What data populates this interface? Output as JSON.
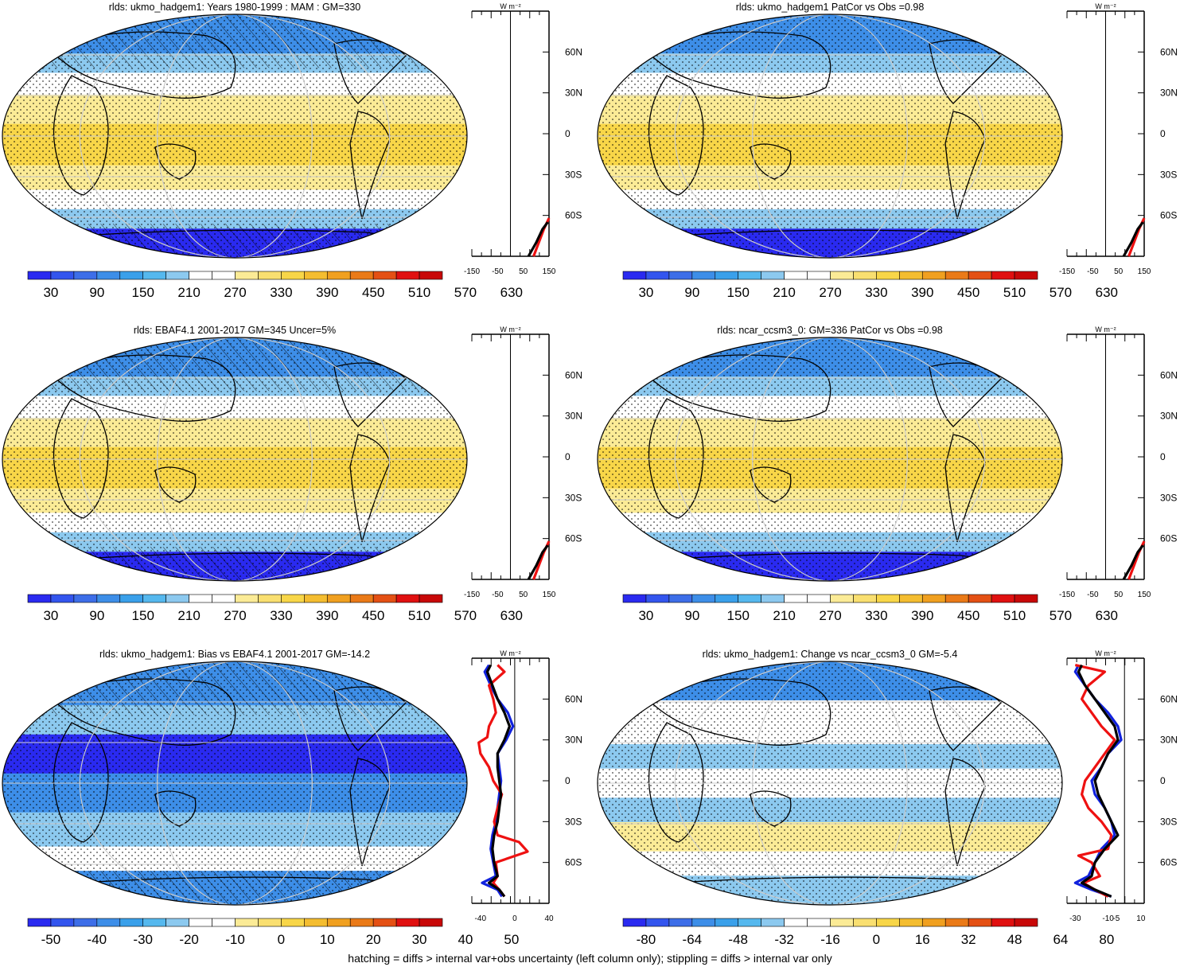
{
  "footnote": "hatching = diffs > internal var+obs uncertainty (left column only); stippling = diffs > internal var only",
  "colors": {
    "blue_dark": "#2a2af0",
    "blue_mid": "#3d8ee8",
    "blue_light": "#8cc9ef",
    "white": "#ffffff",
    "yellow_light": "#fbeb96",
    "yellow": "#f8d648",
    "orange": "#f0a020",
    "red": "#e01010",
    "line_red": "#ee1111",
    "line_blue": "#1122dd",
    "line_black": "#000000"
  },
  "lat_labels": [
    "60N",
    "30N",
    "0",
    "30S",
    "60S"
  ],
  "units_label": "W m⁻²",
  "panels": [
    {
      "title": "rlds: ukmo_hadgem1: Years 1980-1999 : MAM : GM=330",
      "colorbar_labels": [
        "30",
        "90",
        "150",
        "210",
        "270",
        "330",
        "390",
        "450",
        "510",
        "570",
        "630"
      ],
      "zonal_ticks": [
        "-150",
        "-50",
        "50",
        "150"
      ],
      "hatched": true
    },
    {
      "title": "rlds: ukmo_hadgem1 PatCor vs Obs =0.98",
      "colorbar_labels": [
        "30",
        "90",
        "150",
        "210",
        "270",
        "330",
        "390",
        "450",
        "510",
        "570",
        "630"
      ],
      "zonal_ticks": [
        "-150",
        "-50",
        "50",
        "150"
      ],
      "hatched": false
    },
    {
      "title": "rlds: EBAF4.1 2001-2017 GM=345 Uncer=5%",
      "colorbar_labels": [
        "30",
        "90",
        "150",
        "210",
        "270",
        "330",
        "390",
        "450",
        "510",
        "570",
        "630"
      ],
      "zonal_ticks": [
        "-150",
        "-50",
        "50",
        "150"
      ],
      "hatched": true
    },
    {
      "title": "rlds: ncar_ccsm3_0: GM=336 PatCor vs Obs =0.98",
      "colorbar_labels": [
        "30",
        "90",
        "150",
        "210",
        "270",
        "330",
        "390",
        "450",
        "510",
        "570",
        "630"
      ],
      "zonal_ticks": [
        "-150",
        "-50",
        "50",
        "150"
      ],
      "hatched": false
    },
    {
      "title": "rlds: ukmo_hadgem1: Bias vs EBAF4.1 2001-2017 GM=-14.2",
      "colorbar_labels": [
        "-50",
        "-40",
        "-30",
        "-20",
        "-10",
        "0",
        "10",
        "20",
        "30",
        "40",
        "50"
      ],
      "zonal_ticks": [
        "-40",
        "0",
        "40"
      ],
      "hatched": true
    },
    {
      "title": "rlds: ukmo_hadgem1: Change vs ncar_ccsm3_0 GM=-5.4",
      "colorbar_labels": [
        "-80",
        "-64",
        "-48",
        "-32",
        "-16",
        "0",
        "16",
        "32",
        "48",
        "64",
        "80"
      ],
      "zonal_ticks": [
        "-30",
        "-10",
        "-5",
        "10"
      ],
      "hatched": false
    }
  ],
  "chart_data": [
    {
      "type": "heatmap",
      "title": "rlds: ukmo_hadgem1: Years 1980-1999 : MAM : GM=330",
      "colorbar": [
        30,
        90,
        150,
        210,
        270,
        330,
        390,
        450,
        510,
        570,
        630
      ],
      "lat_ticks": [
        "60N",
        "30N",
        "0",
        "30S",
        "60S"
      ],
      "zonal_mean": {
        "xlim": [
          -150,
          150
        ],
        "series": [
          {
            "color": "red",
            "lat": [
              -90,
              -80,
              -70,
              -62
            ],
            "x": [
              90,
              110,
              130,
              150
            ]
          },
          {
            "color": "black",
            "lat": [
              -90,
              -80,
              -70,
              -65
            ],
            "x": [
              70,
              100,
              125,
              145
            ]
          }
        ]
      }
    },
    {
      "type": "heatmap",
      "title": "rlds: ukmo_hadgem1 PatCor vs Obs =0.98",
      "colorbar": [
        30,
        90,
        150,
        210,
        270,
        330,
        390,
        450,
        510,
        570,
        630
      ],
      "lat_ticks": [
        "60N",
        "30N",
        "0",
        "30S",
        "60S"
      ],
      "zonal_mean": {
        "xlim": [
          -150,
          150
        ],
        "series": [
          {
            "color": "red",
            "lat": [
              -90,
              -80,
              -70,
              -62
            ],
            "x": [
              90,
              110,
              130,
              150
            ]
          },
          {
            "color": "black",
            "lat": [
              -90,
              -80,
              -70,
              -65
            ],
            "x": [
              70,
              100,
              125,
              145
            ]
          }
        ]
      }
    },
    {
      "type": "heatmap",
      "title": "rlds: EBAF4.1 2001-2017 GM=345 Uncer=5%",
      "colorbar": [
        30,
        90,
        150,
        210,
        270,
        330,
        390,
        450,
        510,
        570,
        630
      ],
      "lat_ticks": [
        "60N",
        "30N",
        "0",
        "30S",
        "60S"
      ],
      "zonal_mean": {
        "xlim": [
          -150,
          150
        ],
        "series": [
          {
            "color": "red",
            "lat": [
              -90,
              -80,
              -70,
              -62
            ],
            "x": [
              90,
              110,
              130,
              150
            ]
          },
          {
            "color": "black",
            "lat": [
              -90,
              -80,
              -70,
              -65
            ],
            "x": [
              70,
              100,
              125,
              145
            ]
          }
        ]
      }
    },
    {
      "type": "heatmap",
      "title": "rlds: ncar_ccsm3_0: GM=336 PatCor vs Obs =0.98",
      "colorbar": [
        30,
        90,
        150,
        210,
        270,
        330,
        390,
        450,
        510,
        570,
        630
      ],
      "lat_ticks": [
        "60N",
        "30N",
        "0",
        "30S",
        "60S"
      ],
      "zonal_mean": {
        "xlim": [
          -150,
          150
        ],
        "series": [
          {
            "color": "red",
            "lat": [
              -90,
              -80,
              -70,
              -62
            ],
            "x": [
              90,
              110,
              130,
              150
            ]
          },
          {
            "color": "black",
            "lat": [
              -90,
              -80,
              -70,
              -65
            ],
            "x": [
              70,
              100,
              125,
              145
            ]
          }
        ]
      }
    },
    {
      "type": "heatmap",
      "title": "rlds: ukmo_hadgem1: Bias vs EBAF4.1 2001-2017 GM=-14.2",
      "colorbar": [
        -50,
        -40,
        -30,
        -20,
        -10,
        0,
        10,
        20,
        30,
        40,
        50
      ],
      "lat_ticks": [
        "60N",
        "30N",
        "0",
        "30S",
        "60S"
      ],
      "zonal_mean": {
        "xlim": [
          -50,
          40
        ],
        "series": [
          {
            "color": "blue",
            "lat": [
              -85,
              -80,
              -75,
              -70,
              -60,
              -50,
              -40,
              -30,
              -20,
              -10,
              0,
              10,
              20,
              30,
              40,
              50,
              60,
              70,
              80,
              85
            ],
            "x": [
              -15,
              -20,
              -38,
              -22,
              -25,
              -28,
              -26,
              -22,
              -20,
              -18,
              -16,
              -18,
              -20,
              -10,
              -2,
              -8,
              -20,
              -28,
              -35,
              -30
            ]
          },
          {
            "color": "red",
            "lat": [
              -85,
              -80,
              -75,
              -70,
              -60,
              -52,
              -45,
              -40,
              -30,
              -20,
              -10,
              0,
              10,
              20,
              28,
              32,
              40,
              50,
              60,
              70,
              80,
              85
            ],
            "x": [
              -12,
              -18,
              -25,
              -20,
              -22,
              15,
              5,
              -20,
              -24,
              -20,
              -15,
              -25,
              -30,
              -40,
              -42,
              -32,
              -30,
              -22,
              -25,
              -30,
              -12,
              -20
            ]
          },
          {
            "color": "black",
            "lat": [
              -85,
              -80,
              -75,
              -70,
              -60,
              -50,
              -40,
              -30,
              -20,
              -10,
              0,
              10,
              20,
              30,
              40,
              50,
              60,
              70,
              80,
              85
            ],
            "x": [
              -12,
              -18,
              -30,
              -20,
              -24,
              -26,
              -24,
              -20,
              -18,
              -16,
              -18,
              -20,
              -20,
              -12,
              -6,
              -12,
              -20,
              -26,
              -32,
              -28
            ]
          }
        ]
      }
    },
    {
      "type": "heatmap",
      "title": "rlds: ukmo_hadgem1: Change vs ncar_ccsm3_0 GM=-5.4",
      "colorbar": [
        -80,
        -64,
        -48,
        -32,
        -16,
        0,
        16,
        32,
        48,
        64,
        80
      ],
      "lat_ticks": [
        "60N",
        "30N",
        "0",
        "30S",
        "60S"
      ],
      "zonal_mean": {
        "xlim": [
          -35,
          12
        ],
        "series": [
          {
            "color": "blue",
            "lat": [
              -85,
              -80,
              -75,
              -70,
              -60,
              -50,
              -40,
              -30,
              -20,
              -10,
              0,
              10,
              20,
              30,
              40,
              50,
              60,
              70,
              80,
              85
            ],
            "x": [
              -8,
              -20,
              -30,
              -22,
              -18,
              -14,
              -6,
              -8,
              -12,
              -18,
              -20,
              -14,
              -10,
              -2,
              -4,
              -10,
              -18,
              -24,
              -30,
              -28
            ]
          },
          {
            "color": "red",
            "lat": [
              -85,
              -80,
              -75,
              -70,
              -60,
              -55,
              -50,
              -40,
              -30,
              -20,
              -10,
              0,
              10,
              20,
              30,
              40,
              50,
              60,
              70,
              80,
              85
            ],
            "x": [
              -10,
              -18,
              -25,
              -15,
              -20,
              -28,
              -10,
              -8,
              -14,
              -22,
              -26,
              -24,
              -18,
              -12,
              -6,
              -14,
              -20,
              -26,
              -22,
              -12,
              -30
            ]
          },
          {
            "color": "black",
            "lat": [
              -85,
              -80,
              -75,
              -70,
              -60,
              -50,
              -40,
              -30,
              -20,
              -10,
              0,
              10,
              20,
              30,
              40,
              50,
              60,
              70,
              80,
              85
            ],
            "x": [
              -8,
              -18,
              -26,
              -20,
              -18,
              -12,
              -4,
              -8,
              -12,
              -16,
              -18,
              -14,
              -10,
              -4,
              -6,
              -12,
              -18,
              -24,
              -28,
              -26
            ]
          }
        ]
      }
    }
  ]
}
